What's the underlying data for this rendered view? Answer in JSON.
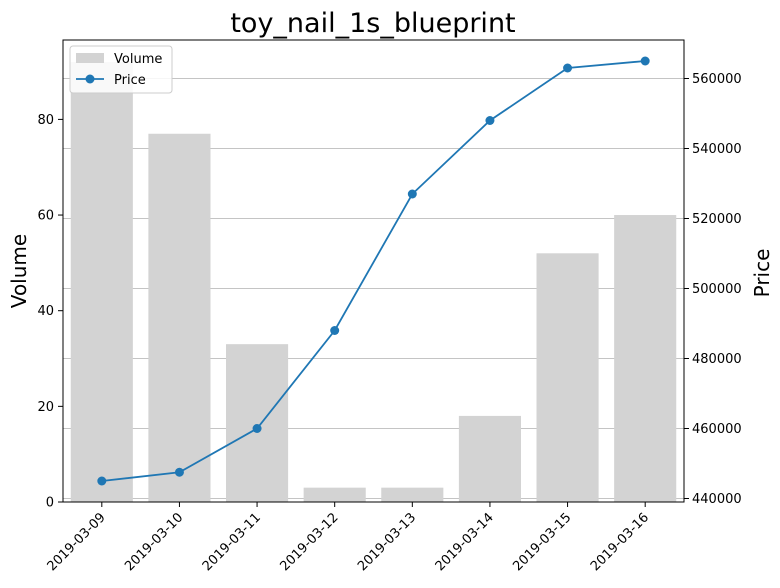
{
  "chart_data": {
    "type": "bar+line",
    "title": "toy_nail_1s_blueprint",
    "categories": [
      "2019-03-09",
      "2019-03-10",
      "2019-03-11",
      "2019-03-12",
      "2019-03-13",
      "2019-03-14",
      "2019-03-15",
      "2019-03-16"
    ],
    "series": [
      {
        "name": "Volume",
        "type": "bar",
        "axis": "left",
        "color": "#d3d3d3",
        "values": [
          92,
          77,
          33,
          3,
          3,
          18,
          52,
          60
        ]
      },
      {
        "name": "Price",
        "type": "line",
        "axis": "right",
        "color": "#1f77b4",
        "marker": "circle",
        "values": [
          445000,
          447500,
          460000,
          488000,
          527000,
          548000,
          563000,
          565000
        ]
      }
    ],
    "y_left": {
      "label": "Volume",
      "ylim": [
        0,
        96.6
      ],
      "ticks": [
        0,
        20,
        40,
        60,
        80
      ]
    },
    "y_right": {
      "label": "Price",
      "ylim": [
        439000,
        571000
      ],
      "ticks": [
        440000,
        460000,
        480000,
        500000,
        520000,
        540000,
        560000
      ]
    },
    "grid": "horizontal, right axis",
    "legend": {
      "placement": "top-left",
      "entries": [
        "Volume",
        "Price"
      ]
    }
  }
}
